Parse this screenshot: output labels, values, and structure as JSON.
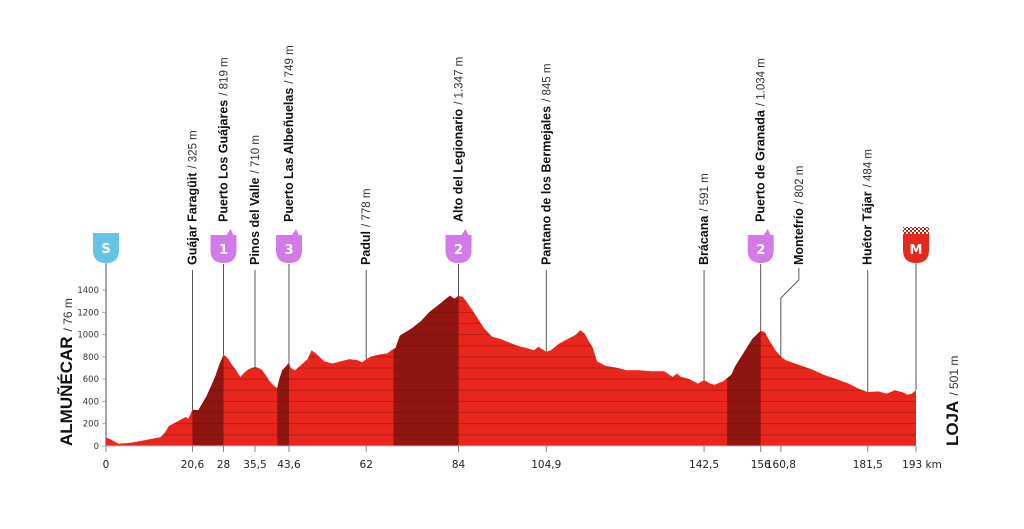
{
  "chart_data": {
    "type": "area",
    "x_unit": "km",
    "x_range": [
      0,
      193
    ],
    "y_range": [
      0,
      1400
    ],
    "y_ticks": [
      "0",
      "200",
      "400",
      "600",
      "800",
      "1000",
      "1200",
      "1400"
    ],
    "x_ticks": [
      "0",
      "20,6",
      "28",
      "35,5",
      "43,6",
      "62",
      "84",
      "104,9",
      "142,5",
      "156",
      "160,8",
      "181,5",
      "193 km"
    ],
    "x_tick_values": [
      0,
      20.6,
      28,
      35.5,
      43.6,
      62,
      84,
      104.9,
      142.5,
      156,
      160.8,
      181.5,
      193
    ],
    "start": {
      "name": "ALMUÑÉCAR",
      "altitude": "/ 76 m",
      "badge": "S"
    },
    "finish": {
      "name": "LOJA",
      "altitude": "/ 501 m",
      "badge": "M"
    },
    "profile": [
      [
        0,
        76
      ],
      [
        1,
        60
      ],
      [
        3,
        20
      ],
      [
        6,
        30
      ],
      [
        9,
        50
      ],
      [
        13,
        80
      ],
      [
        14,
        120
      ],
      [
        15,
        180
      ],
      [
        16,
        200
      ],
      [
        17.5,
        230
      ],
      [
        19,
        260
      ],
      [
        19.6,
        245
      ],
      [
        20.6,
        325
      ],
      [
        22,
        320
      ],
      [
        24,
        450
      ],
      [
        26,
        620
      ],
      [
        27,
        730
      ],
      [
        28,
        819
      ],
      [
        29,
        790
      ],
      [
        30,
        730
      ],
      [
        31,
        680
      ],
      [
        32,
        620
      ],
      [
        33,
        660
      ],
      [
        34,
        690
      ],
      [
        35.5,
        710
      ],
      [
        37,
        690
      ],
      [
        38,
        640
      ],
      [
        39,
        580
      ],
      [
        40,
        540
      ],
      [
        40.8,
        520
      ],
      [
        41.3,
        600
      ],
      [
        42,
        680
      ],
      [
        43,
        720
      ],
      [
        43.6,
        749
      ],
      [
        44,
        700
      ],
      [
        45,
        680
      ],
      [
        46,
        710
      ],
      [
        48,
        780
      ],
      [
        49,
        860
      ],
      [
        50,
        830
      ],
      [
        52,
        760
      ],
      [
        54,
        740
      ],
      [
        56,
        760
      ],
      [
        58,
        780
      ],
      [
        60,
        770
      ],
      [
        61,
        750
      ],
      [
        62,
        778
      ],
      [
        63,
        800
      ],
      [
        65,
        820
      ],
      [
        67,
        830
      ],
      [
        68,
        860
      ],
      [
        69,
        880
      ],
      [
        70,
        990
      ],
      [
        73,
        1060
      ],
      [
        75,
        1120
      ],
      [
        77,
        1200
      ],
      [
        79,
        1260
      ],
      [
        81,
        1320
      ],
      [
        82,
        1350
      ],
      [
        83,
        1320
      ],
      [
        84,
        1347
      ],
      [
        85,
        1340
      ],
      [
        86,
        1290
      ],
      [
        88,
        1180
      ],
      [
        90,
        1060
      ],
      [
        92,
        980
      ],
      [
        94,
        960
      ],
      [
        96,
        930
      ],
      [
        98,
        900
      ],
      [
        100,
        880
      ],
      [
        102,
        860
      ],
      [
        103,
        890
      ],
      [
        104.9,
        845
      ],
      [
        106,
        860
      ],
      [
        108,
        920
      ],
      [
        110,
        960
      ],
      [
        112,
        1000
      ],
      [
        113,
        1040
      ],
      [
        114,
        1010
      ],
      [
        116,
        880
      ],
      [
        117,
        760
      ],
      [
        119,
        720
      ],
      [
        122,
        700
      ],
      [
        124,
        680
      ],
      [
        127,
        680
      ],
      [
        130,
        670
      ],
      [
        133,
        670
      ],
      [
        135,
        620
      ],
      [
        136,
        650
      ],
      [
        137,
        620
      ],
      [
        139,
        600
      ],
      [
        140,
        580
      ],
      [
        141,
        560
      ],
      [
        142.5,
        591
      ],
      [
        144,
        560
      ],
      [
        145,
        550
      ],
      [
        147,
        580
      ],
      [
        149,
        640
      ],
      [
        150,
        720
      ],
      [
        152,
        840
      ],
      [
        154,
        960
      ],
      [
        156,
        1034
      ],
      [
        157,
        1020
      ],
      [
        158,
        950
      ],
      [
        159.5,
        860
      ],
      [
        160.8,
        802
      ],
      [
        162,
        770
      ],
      [
        165,
        730
      ],
      [
        168,
        690
      ],
      [
        171,
        640
      ],
      [
        174,
        600
      ],
      [
        177,
        560
      ],
      [
        179,
        520
      ],
      [
        181.5,
        484
      ],
      [
        184,
        490
      ],
      [
        186,
        470
      ],
      [
        188,
        500
      ],
      [
        190,
        480
      ],
      [
        191,
        460
      ],
      [
        192,
        470
      ],
      [
        193,
        501
      ]
    ],
    "climbs": [
      {
        "from": 20.6,
        "to": 28
      },
      {
        "from": 40.8,
        "to": 43.6
      },
      {
        "from": 68.5,
        "to": 84
      },
      {
        "from": 148,
        "to": 156
      }
    ],
    "waypoints": [
      {
        "km": 20.6,
        "name": "Guájar Faragüit",
        "altitude": "/ 325 m"
      },
      {
        "km": 28,
        "name": "Puerto Los Guájares",
        "altitude": "/ 819 m",
        "badge": "1"
      },
      {
        "km": 35.5,
        "name": "Pinos del Valle",
        "altitude": "/ 710 m"
      },
      {
        "km": 43.6,
        "name": "Puerto Las Albeñuelas",
        "altitude": "/ 749 m",
        "badge": "3"
      },
      {
        "km": 62,
        "name": "Padul",
        "altitude": "/ 778 m"
      },
      {
        "km": 84,
        "name": "Alto del Legionario",
        "altitude": "/ 1.347 m",
        "badge": "2"
      },
      {
        "km": 104.9,
        "name": "Pantano de los Bermejales",
        "altitude": "/ 845 m"
      },
      {
        "km": 142.5,
        "name": "Brácana",
        "altitude": "/ 591 m"
      },
      {
        "km": 156,
        "name": "Puerto de Granada",
        "altitude": "/ 1.034 m",
        "badge": "2"
      },
      {
        "km": 160.8,
        "name": "Montefrío",
        "altitude": "/ 802 m"
      },
      {
        "km": 181.5,
        "name": "Huétor Tájar",
        "altitude": "/ 484 m"
      }
    ],
    "colors": {
      "profile": "#e8261d",
      "climb": "#8f1510",
      "stripe": "#6b0e0a",
      "mountain_badge": "#d27ae8",
      "start_badge": "#64c4e6",
      "finish_badge": "#e4281e"
    }
  }
}
